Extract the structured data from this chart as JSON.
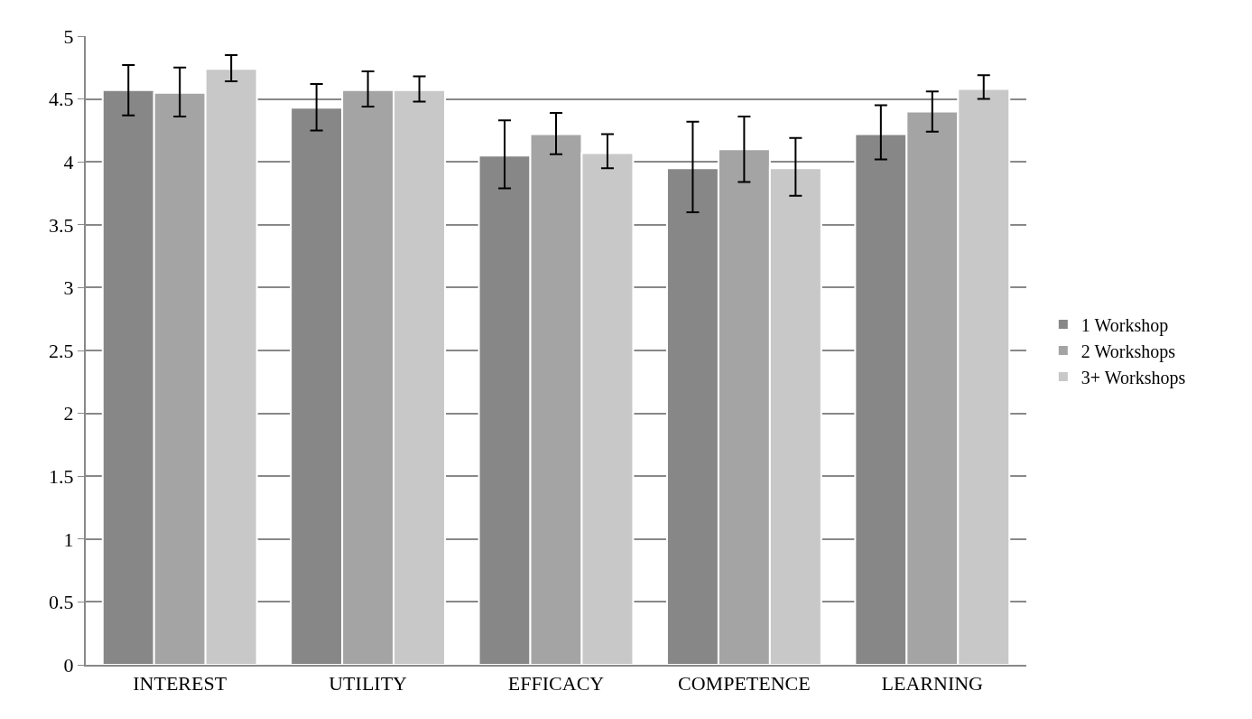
{
  "chart_data": {
    "type": "bar",
    "categories": [
      "INTEREST",
      "UTILITY",
      "EFFICACY",
      "COMPETENCE",
      "LEARNING"
    ],
    "series": [
      {
        "name": "1 Workshop",
        "color": "#878787",
        "values": [
          4.57,
          4.43,
          4.05,
          3.95,
          4.22
        ],
        "errors": [
          [
            4.37,
            4.77
          ],
          [
            4.25,
            4.62
          ],
          [
            3.79,
            4.33
          ],
          [
            3.6,
            4.32
          ],
          [
            4.02,
            4.45
          ]
        ]
      },
      {
        "name": "2 Workshops",
        "color": "#a4a4a4",
        "values": [
          4.55,
          4.57,
          4.22,
          4.1,
          4.4
        ],
        "errors": [
          [
            4.36,
            4.75
          ],
          [
            4.44,
            4.72
          ],
          [
            4.06,
            4.39
          ],
          [
            3.84,
            4.36
          ],
          [
            4.24,
            4.56
          ]
        ]
      },
      {
        "name": "3+ Workshops",
        "color": "#c8c8c8",
        "values": [
          4.74,
          4.57,
          4.07,
          3.95,
          4.58
        ],
        "errors": [
          [
            4.64,
            4.85
          ],
          [
            4.48,
            4.68
          ],
          [
            3.95,
            4.22
          ],
          [
            3.73,
            4.19
          ],
          [
            4.5,
            4.69
          ]
        ]
      }
    ],
    "ylim": [
      0,
      5
    ],
    "yticks": [
      0,
      0.5,
      1,
      1.5,
      2,
      2.5,
      3,
      3.5,
      4,
      4.5,
      5
    ],
    "grid": "y",
    "legend": "right"
  }
}
